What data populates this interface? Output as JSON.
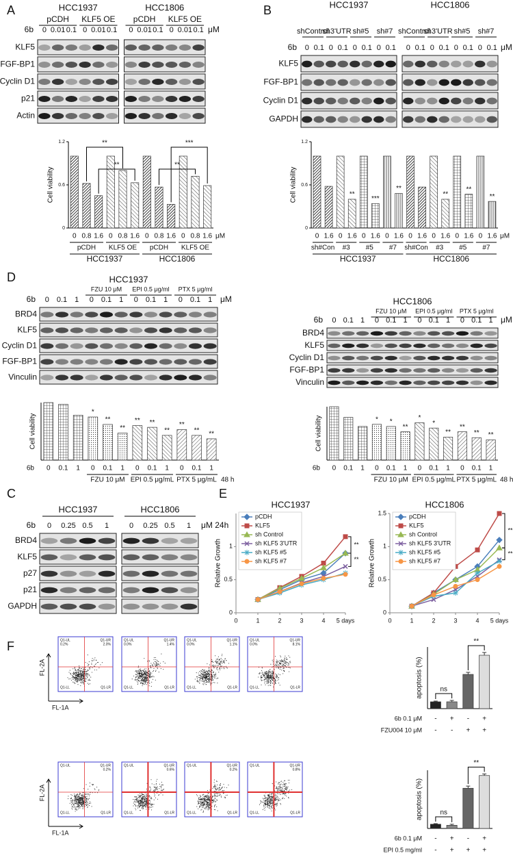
{
  "panels": [
    {
      "label": "A",
      "blots": [
        {
          "cell_lines": [
            "HCC1937",
            "HCC1806"
          ],
          "groups": [
            "pCDH",
            "KLF5 OE",
            "pCDH",
            "KLF5 OE"
          ],
          "dose_label": "6b",
          "doses": [
            "0",
            "0.01",
            "0.1",
            "0",
            "0.01",
            "0.1",
            "0",
            "0.01",
            "0.1",
            "0",
            "0.01",
            "0.1"
          ],
          "unit": "μM",
          "rows": [
            "KLF5",
            "FGF-BP1",
            "Cyclin D1",
            "p21",
            "Actin"
          ]
        }
      ],
      "charts": [
        {
          "type": "bar",
          "y_label": "Cell viability",
          "ylim": [
            0,
            1.2
          ],
          "yticks": [
            0,
            0.6,
            1.2
          ],
          "values": [
            1.0,
            0.62,
            0.45,
            1.0,
            0.8,
            0.63,
            1.0,
            0.57,
            0.33,
            1.0,
            0.72,
            0.59
          ],
          "doses": [
            "0",
            "0.8",
            "1.6",
            "0",
            "0.8",
            "1.6",
            "0",
            "0.8",
            "1.6",
            "0",
            "0.8",
            "1.6"
          ],
          "unit": "μM",
          "groups": [
            "pCDH",
            "KLF5 OE",
            "pCDH",
            "KLF5 OE"
          ],
          "cell_lines": [
            "HCC1937",
            "HCC1806"
          ],
          "significance": [
            "**",
            "**",
            "**",
            "***"
          ]
        }
      ]
    },
    {
      "label": "B",
      "blots": [
        {
          "cell_lines": [
            "HCC1937",
            "HCC1806"
          ],
          "groups": [
            "shControl",
            "sh3'UTR",
            "sh#5",
            "sh#7",
            "shControl",
            "sh3'UTR",
            "sh#5",
            "sh#7"
          ],
          "dose_label": "6b",
          "doses": [
            "0",
            "0.1",
            "0",
            "0.1",
            "0",
            "0.1",
            "0",
            "0.1",
            "0",
            "0.1",
            "0",
            "0.1",
            "0",
            "0.1",
            "0",
            "0.1"
          ],
          "unit": "μM",
          "rows": [
            "KLF5",
            "FGF-BP1",
            "Cyclin D1",
            "GAPDH"
          ]
        }
      ],
      "charts": [
        {
          "type": "bar",
          "y_label": "Cell viability",
          "ylim": [
            0,
            1.2
          ],
          "yticks": [
            0,
            0.6,
            1.2
          ],
          "values": [
            1.0,
            0.58,
            1.0,
            0.4,
            1.0,
            0.34,
            1.0,
            0.48,
            1.0,
            0.57,
            1.0,
            0.4,
            1.0,
            0.47,
            1.0,
            0.37
          ],
          "significance": [
            null,
            null,
            null,
            "**",
            null,
            "***",
            null,
            "**",
            null,
            null,
            null,
            "**",
            null,
            "**",
            null,
            "**"
          ],
          "doses": [
            "0",
            "1.6",
            "0",
            "1.6",
            "0",
            "1.6",
            "0",
            "1.6",
            "0",
            "1.6",
            "0",
            "1.6",
            "0",
            "1.6",
            "0",
            "1.6"
          ],
          "unit": "μM",
          "groups": [
            "sh#Con",
            "#3",
            "#5",
            "#7",
            "sh#Con",
            "#3",
            "#5",
            "#7"
          ],
          "cell_lines": [
            "HCC1937",
            "HCC1806"
          ]
        }
      ]
    },
    {
      "label": "D",
      "blots": [
        {
          "cell_lines": [
            "HCC1937"
          ],
          "groups": [
            "FZU 10 μM",
            "EPI 0.5 μg/ml",
            "PTX 5 μg/ml"
          ],
          "dose_label": "6b",
          "doses": [
            "0",
            "0.1",
            "1",
            "0",
            "0.1",
            "1",
            "0",
            "0.1",
            "1",
            "0",
            "0.1",
            "1"
          ],
          "unit": "μM",
          "rows": [
            "BRD4",
            "KLF5",
            "Cyclin D1",
            "FGF-BP1",
            "Vinculin"
          ]
        },
        {
          "cell_lines": [
            "HCC1806"
          ],
          "groups": [
            "FZU 10 μM",
            "EPI 0.5 μg/ml",
            "PTX 5 μg/ml"
          ],
          "dose_label": "6b",
          "doses": [
            "0",
            "0.1",
            "1",
            "0",
            "0.1",
            "1",
            "0",
            "0.1",
            "1",
            "0",
            "0.1",
            "1"
          ],
          "unit": "μM",
          "rows": [
            "BRD4",
            "KLF5",
            "Cyclin D1",
            "FGF-BP1",
            "Vinculin"
          ]
        }
      ],
      "charts": [
        {
          "type": "bar",
          "y_label": "Cell viability",
          "ylim": [
            0,
            1.0
          ],
          "values": [
            1.0,
            0.97,
            0.78,
            0.75,
            0.62,
            0.47,
            0.6,
            0.57,
            0.43,
            0.53,
            0.43,
            0.37
          ],
          "significance": [
            null,
            null,
            null,
            "*",
            "**",
            "**",
            "**",
            "**",
            "**",
            "**",
            "**",
            "**"
          ],
          "dose_label": "6b",
          "doses": [
            "0",
            "0.1",
            "1",
            "0",
            "0.1",
            "1",
            "0",
            "0.1",
            "1",
            "0",
            "0.1",
            "1"
          ],
          "groups": [
            "FZU 10 μM",
            "EPI 0.5 μg/mL",
            "PTX 5 μg/mL"
          ],
          "time": "48 h"
        },
        {
          "type": "bar",
          "y_label": "Cell viability",
          "ylim": [
            0,
            1.0
          ],
          "values": [
            1.0,
            0.8,
            0.63,
            0.67,
            0.63,
            0.53,
            0.7,
            0.6,
            0.43,
            0.53,
            0.42,
            0.38
          ],
          "significance": [
            null,
            null,
            null,
            "*",
            "*",
            "**",
            "*",
            "*",
            "**",
            "**",
            "**",
            "**"
          ],
          "dose_label": "6b",
          "doses": [
            "0",
            "0.1",
            "1",
            "0",
            "0.1",
            "1",
            "0",
            "0.1",
            "1",
            "0",
            "0.1",
            "1"
          ],
          "groups": [
            "FZU 10 μM",
            "EPI 0.5 μg/mL",
            "PTX 5 μg/mL"
          ],
          "time": "48 h"
        }
      ]
    },
    {
      "label": "C",
      "blots": [
        {
          "cell_lines": [
            "HCC1937",
            "HCC1806"
          ],
          "dose_label": "6b",
          "doses": [
            "0",
            "0.25",
            "0.5",
            "1",
            "0",
            "0.25",
            "0.5",
            "1"
          ],
          "unit": "μM 24h",
          "rows": [
            "BRD4",
            "KLF5",
            "p27",
            "p21",
            "GAPDH"
          ]
        }
      ]
    },
    {
      "label": "E",
      "charts": [
        {
          "type": "line",
          "title": "HCC1937",
          "y_label": "Relative Growth",
          "x": [
            1,
            2,
            3,
            4,
            5
          ],
          "xlim": [
            0,
            5
          ],
          "xticks": [
            0,
            1,
            2,
            3,
            4,
            {
              "value": 5,
              "label": "5 days"
            }
          ],
          "ylim": [
            0,
            1.5
          ],
          "yticks": [
            0,
            0.5,
            1
          ],
          "significance": [
            "**",
            "**"
          ],
          "series": [
            {
              "name": "pCDH",
              "color": "#4a7ebb",
              "values": [
                0.2,
                0.35,
                0.5,
                0.6,
                0.9
              ]
            },
            {
              "name": "KLF5",
              "color": "#be4b48",
              "values": [
                0.2,
                0.38,
                0.55,
                0.75,
                1.15
              ]
            },
            {
              "name": "sh Control",
              "color": "#98b954",
              "values": [
                0.2,
                0.37,
                0.52,
                0.68,
                0.9
              ]
            },
            {
              "name": "sh KLF5 3'UTR",
              "color": "#7d60a0",
              "values": [
                0.2,
                0.32,
                0.45,
                0.55,
                0.7
              ]
            },
            {
              "name": "sh KLF5 #5",
              "color": "#46aac5",
              "values": [
                0.2,
                0.3,
                0.42,
                0.5,
                0.6
              ]
            },
            {
              "name": "sh KLF5 #7",
              "color": "#f79646",
              "values": [
                0.2,
                0.32,
                0.44,
                0.52,
                0.58
              ]
            }
          ]
        },
        {
          "type": "line",
          "title": "HCC1806",
          "y_label": "Relative Growth",
          "x": [
            1,
            2,
            3,
            4,
            5
          ],
          "xlim": [
            0,
            5
          ],
          "xticks": [
            0,
            1,
            2,
            3,
            4,
            {
              "value": 5,
              "label": "5 days"
            }
          ],
          "ylim": [
            0,
            1.5
          ],
          "yticks": [
            0,
            0.5,
            1,
            1.5
          ],
          "significance": [
            "**",
            "**"
          ],
          "series": [
            {
              "name": "pCDH",
              "color": "#4a7ebb",
              "values": [
                0.1,
                0.3,
                0.5,
                0.7,
                1.1
              ]
            },
            {
              "name": "KLF5",
              "color": "#be4b48",
              "values": [
                0.1,
                0.3,
                0.7,
                0.95,
                1.5
              ]
            },
            {
              "name": "sh Control",
              "color": "#98b954",
              "values": [
                0.1,
                0.28,
                0.5,
                0.65,
                0.98
              ]
            },
            {
              "name": "sh KLF5 3'UTR",
              "color": "#7d60a0",
              "values": [
                0.1,
                0.2,
                0.35,
                0.55,
                0.8
              ]
            },
            {
              "name": "sh KLF5 #5",
              "color": "#46aac5",
              "values": [
                0.1,
                0.25,
                0.3,
                0.6,
                0.78
              ]
            },
            {
              "name": "sh KLF5 #7",
              "color": "#f79646",
              "values": [
                0.1,
                0.27,
                0.4,
                0.5,
                0.7
              ]
            }
          ]
        }
      ]
    },
    {
      "label": "F",
      "rows": [
        {
          "flow": {
            "y_label": "FL-2A",
            "x_label": "FL-1A",
            "quadrants": [
              "Q1-UL",
              "Q1-UR",
              "Q1-LL",
              "Q1-LR"
            ],
            "plots": [
              {
                "ul": "0.2%",
                "ur": "2.0%"
              },
              {
                "ul": "0.0%",
                "ur": "1.4%"
              },
              {
                "ul": "0.0%",
                "ur": "1.1%"
              },
              {
                "ul": "0.0%",
                "ur": "8.1%"
              }
            ]
          },
          "chart": {
            "type": "bar",
            "y_label": "apoptosis (%)",
            "ylim": [
              0,
              45
            ],
            "values": [
              5,
              5,
              25,
              39
            ],
            "errors": [
              0.5,
              1,
              1.5,
              2
            ],
            "colors": [
              "#222222",
              "#888888",
              "#666666",
              "#dddddd"
            ],
            "significance": [
              "ns",
              "**"
            ],
            "conditions": [
              {
                "name": "6b 0.1 μM",
                "signs": [
                  "-",
                  "+",
                  "-",
                  "+"
                ]
              },
              {
                "name": "FZU004 10 μM",
                "signs": [
                  "-",
                  "-",
                  "+",
                  "+"
                ]
              }
            ]
          }
        },
        {
          "flow": {
            "y_label": "FL-2A",
            "x_label": "FL-1A",
            "quadrants": [
              "Q1-UL",
              "Q1-UR",
              "Q1-LL",
              "Q1-LR"
            ],
            "plots": [
              {
                "ur": "0.2%"
              },
              {
                "ur": "0.6%"
              },
              {
                "ur": "0.2%"
              },
              {
                "ur": "0.8%"
              }
            ]
          },
          "chart": {
            "type": "bar",
            "y_label": "apoptosis (%)",
            "ylim": [
              0,
              55
            ],
            "values": [
              4,
              3,
              38,
              50
            ],
            "errors": [
              0.5,
              1,
              2,
              1.5
            ],
            "colors": [
              "#222222",
              "#888888",
              "#666666",
              "#dddddd"
            ],
            "significance": [
              "ns",
              "**"
            ],
            "conditions": [
              {
                "name": "6b 0.1 μM",
                "signs": [
                  "-",
                  "+",
                  "-",
                  "+"
                ]
              },
              {
                "name": "EPI 0.5 mg/ml",
                "signs": [
                  "-",
                  "+",
                  "+",
                  "+"
                ]
              }
            ]
          }
        }
      ]
    }
  ]
}
